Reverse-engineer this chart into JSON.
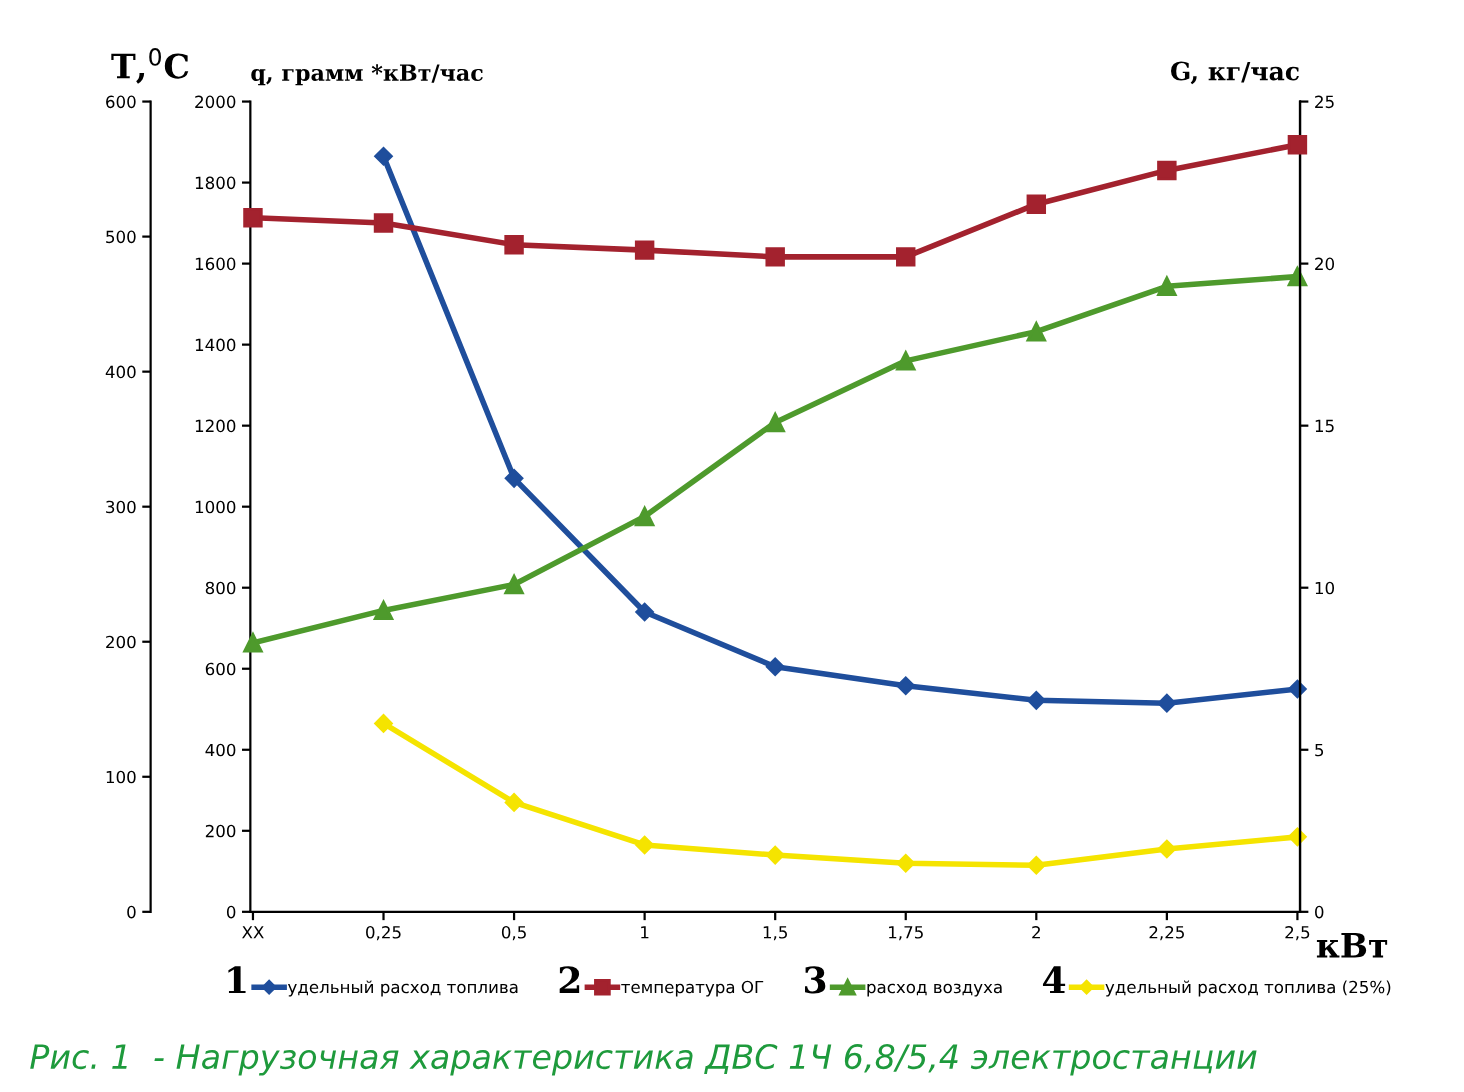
{
  "chart_data": {
    "type": "line",
    "title": "Рис. 1  - Нагрузочная характеристика ДВС 1Ч 6,8/5,4 электростанции",
    "ylabel": "q, грамм *кВт/час",
    "y2label": "G, кг/час",
    "y3label": "T,$^{0}$C",
    "xlabel": "кВт",
    "categories": [
      "XX",
      "0,25",
      "0,5",
      "1",
      "1,5",
      "1,75",
      "2",
      "2,25",
      "2,5"
    ],
    "ylim": [
      0,
      2000
    ],
    "yticks": [
      0,
      200,
      400,
      600,
      800,
      1000,
      1200,
      1400,
      1600,
      1800,
      2000
    ],
    "y2lim": [
      0,
      25
    ],
    "y2ticks": [
      0,
      5,
      10,
      15,
      20,
      25
    ],
    "y3lim": [
      0,
      600
    ],
    "y3ticks": [
      0,
      100,
      200,
      300,
      400,
      500,
      600
    ],
    "annotations": [
      "1",
      "2",
      "3",
      "4"
    ],
    "grid": false,
    "legend": "bottom",
    "line_style": "solid",
    "series": [
      {
        "name": "удельный расход топлива",
        "color": "#1f4e9c",
        "marker": "diamond",
        "axis": "y",
        "values": [
          null,
          1865,
          1070,
          740,
          605,
          558,
          522,
          515,
          550
        ]
      },
      {
        "name": "температура ОГ",
        "color": "#a3222e",
        "marker": "square",
        "axis": "y3",
        "values": [
          514,
          510,
          494,
          490,
          485,
          485,
          524,
          549,
          568
        ]
      },
      {
        "name": "расход воздуха",
        "color": "#4e9a2c",
        "marker": "triangle",
        "axis": "y2",
        "values": [
          8.3,
          9.3,
          10.1,
          12.2,
          15.1,
          17.0,
          17.9,
          19.3,
          19.6
        ]
      },
      {
        "name": "удельный расход топлива (25%)",
        "color": "#f5e400",
        "marker": "diamond",
        "axis": "y",
        "values": [
          null,
          465,
          270,
          165,
          140,
          120,
          115,
          155,
          185
        ]
      }
    ]
  }
}
